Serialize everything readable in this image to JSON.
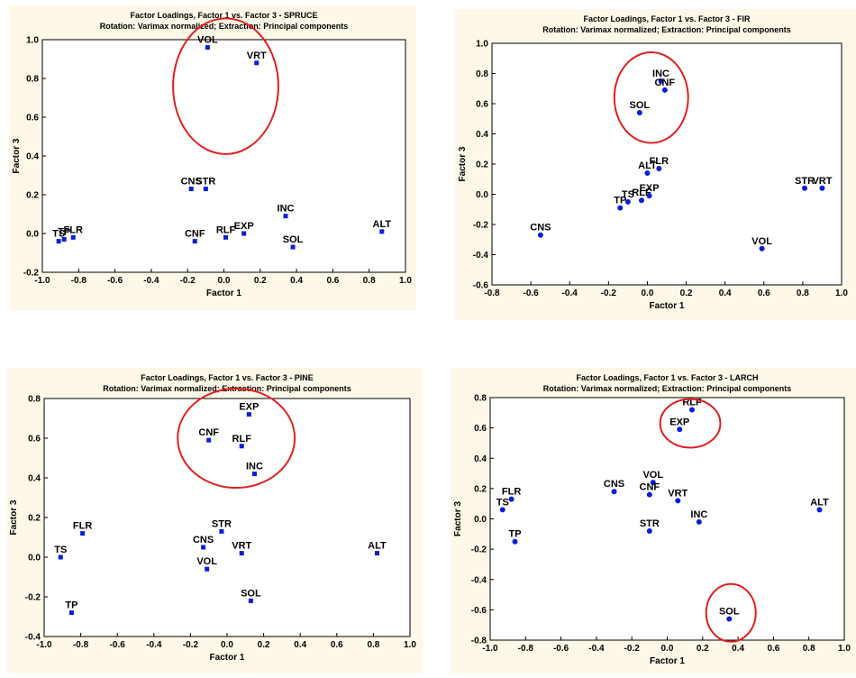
{
  "colors": {
    "panel_bg": "#fdf8e8",
    "marker": "#0a1ed8",
    "circle": "#e02020",
    "text": "#000000"
  },
  "chart_data": [
    {
      "type": "scatter",
      "title": "Factor Loadings, Factor 1 vs. Factor 3 - SPRUCE",
      "subtitle": "Rotation: Varimax normalized; Extraction: Principal components",
      "xlabel": "Factor 1",
      "ylabel": "Factor 3",
      "xlim": [
        -1.0,
        1.0
      ],
      "ylim": [
        -0.2,
        1.0
      ],
      "xticks": [
        "-1.0",
        "-0.8",
        "-0.6",
        "-0.4",
        "-0.2",
        "0.0",
        "0.2",
        "0.4",
        "0.6",
        "0.8",
        "1.0"
      ],
      "yticks": [
        "-0.2",
        "0.0",
        "0.2",
        "0.4",
        "0.6",
        "0.8",
        "1.0"
      ],
      "marker": "square",
      "grid": false,
      "points": [
        {
          "label": "VOL",
          "x": -0.09,
          "y": 0.96
        },
        {
          "label": "VRT",
          "x": 0.18,
          "y": 0.88
        },
        {
          "label": "CNS",
          "x": -0.18,
          "y": 0.23
        },
        {
          "label": "STR",
          "x": -0.1,
          "y": 0.23
        },
        {
          "label": "INC",
          "x": 0.34,
          "y": 0.09
        },
        {
          "label": "ALT",
          "x": 0.87,
          "y": 0.01
        },
        {
          "label": "EXP",
          "x": 0.11,
          "y": 0.0
        },
        {
          "label": "RLF",
          "x": 0.01,
          "y": -0.02
        },
        {
          "label": "CNF",
          "x": -0.16,
          "y": -0.04
        },
        {
          "label": "SOL",
          "x": 0.38,
          "y": -0.07
        },
        {
          "label": "FLR",
          "x": -0.83,
          "y": -0.02
        },
        {
          "label": "TS",
          "x": -0.91,
          "y": -0.04
        },
        {
          "label": "TP",
          "x": -0.88,
          "y": -0.03
        }
      ],
      "circles": [
        {
          "cx": 0.01,
          "cy": 0.76,
          "rx": 0.29,
          "ry": 0.35
        }
      ]
    },
    {
      "type": "scatter",
      "title": "Factor Loadings, Factor 1 vs. Factor 3 - FIR",
      "subtitle": "Rotation: Varimax normalized; Extraction: Principal components",
      "xlabel": "Factor 1",
      "ylabel": "Factor 3",
      "xlim": [
        -0.8,
        1.0
      ],
      "ylim": [
        -0.6,
        1.0
      ],
      "xticks": [
        "-0.8",
        "-0.6",
        "-0.4",
        "-0.2",
        "0.0",
        "0.2",
        "0.4",
        "0.6",
        "0.8",
        "1.0"
      ],
      "yticks": [
        "-0.6",
        "-0.4",
        "-0.2",
        "0.0",
        "0.2",
        "0.4",
        "0.6",
        "0.8",
        "1.0"
      ],
      "marker": "circle",
      "grid": false,
      "points": [
        {
          "label": "INC",
          "x": 0.07,
          "y": 0.75
        },
        {
          "label": "CNF",
          "x": 0.09,
          "y": 0.69
        },
        {
          "label": "SOL",
          "x": -0.04,
          "y": 0.54
        },
        {
          "label": "FLR",
          "x": 0.06,
          "y": 0.17
        },
        {
          "label": "ALT",
          "x": 0.0,
          "y": 0.14
        },
        {
          "label": "STR",
          "x": 0.81,
          "y": 0.04
        },
        {
          "label": "VRT",
          "x": 0.9,
          "y": 0.04
        },
        {
          "label": "EXP",
          "x": 0.01,
          "y": -0.01
        },
        {
          "label": "RLF",
          "x": -0.03,
          "y": -0.04
        },
        {
          "label": "TS",
          "x": -0.1,
          "y": -0.05
        },
        {
          "label": "TP",
          "x": -0.14,
          "y": -0.09
        },
        {
          "label": "CNS",
          "x": -0.55,
          "y": -0.27
        },
        {
          "label": "VOL",
          "x": 0.59,
          "y": -0.36
        }
      ],
      "circles": [
        {
          "cx": 0.02,
          "cy": 0.64,
          "rx": 0.19,
          "ry": 0.3
        }
      ]
    },
    {
      "type": "scatter",
      "title": "Factor Loadings, Factor 1 vs. Factor 3 - PINE",
      "subtitle": "Rotation: Varimax normalized; Extraction: Principal components",
      "xlabel": "Factor 1",
      "ylabel": "Factor 3",
      "xlim": [
        -1.0,
        1.0
      ],
      "ylim": [
        -0.4,
        0.8
      ],
      "xticks": [
        "-1.0",
        "-0.8",
        "-0.6",
        "-0.4",
        "-0.2",
        "0.0",
        "0.2",
        "0.4",
        "0.6",
        "0.8",
        "1.0"
      ],
      "yticks": [
        "-0.4",
        "-0.2",
        "0.0",
        "0.2",
        "0.4",
        "0.6",
        "0.8"
      ],
      "marker": "square",
      "grid": false,
      "points": [
        {
          "label": "EXP",
          "x": 0.12,
          "y": 0.72
        },
        {
          "label": "CNF",
          "x": -0.1,
          "y": 0.59
        },
        {
          "label": "RLF",
          "x": 0.08,
          "y": 0.56
        },
        {
          "label": "INC",
          "x": 0.15,
          "y": 0.42
        },
        {
          "label": "STR",
          "x": -0.03,
          "y": 0.13
        },
        {
          "label": "FLR",
          "x": -0.79,
          "y": 0.12
        },
        {
          "label": "CNS",
          "x": -0.13,
          "y": 0.05
        },
        {
          "label": "VRT",
          "x": 0.08,
          "y": 0.02
        },
        {
          "label": "ALT",
          "x": 0.82,
          "y": 0.02
        },
        {
          "label": "TS",
          "x": -0.91,
          "y": 0.0
        },
        {
          "label": "VOL",
          "x": -0.11,
          "y": -0.06
        },
        {
          "label": "SOL",
          "x": 0.13,
          "y": -0.22
        },
        {
          "label": "TP",
          "x": -0.85,
          "y": -0.28
        }
      ],
      "circles": [
        {
          "cx": 0.05,
          "cy": 0.6,
          "rx": 0.32,
          "ry": 0.25
        }
      ]
    },
    {
      "type": "scatter",
      "title": "Factor Loadings, Factor 1 vs. Factor 3 - LARCH",
      "subtitle": "Rotation: Varimax normalized; Extraction: Principal components",
      "xlabel": "Factor 1",
      "ylabel": "Factor 3",
      "xlim": [
        -1.0,
        1.0
      ],
      "ylim": [
        -0.8,
        0.8
      ],
      "xticks": [
        "-1.0",
        "-0.8",
        "-0.6",
        "-0.4",
        "-0.2",
        "0.0",
        "0.2",
        "0.4",
        "0.6",
        "0.8",
        "1.0"
      ],
      "yticks": [
        "-0.8",
        "-0.6",
        "-0.4",
        "-0.2",
        "0.0",
        "0.2",
        "0.4",
        "0.6",
        "0.8"
      ],
      "marker": "circle",
      "grid": false,
      "points": [
        {
          "label": "RLF",
          "x": 0.14,
          "y": 0.72
        },
        {
          "label": "EXP",
          "x": 0.07,
          "y": 0.59
        },
        {
          "label": "VOL",
          "x": -0.08,
          "y": 0.24
        },
        {
          "label": "CNS",
          "x": -0.3,
          "y": 0.18
        },
        {
          "label": "CNF",
          "x": -0.1,
          "y": 0.16
        },
        {
          "label": "VRT",
          "x": 0.06,
          "y": 0.12
        },
        {
          "label": "FLR",
          "x": -0.88,
          "y": 0.13
        },
        {
          "label": "TS",
          "x": -0.93,
          "y": 0.06
        },
        {
          "label": "ALT",
          "x": 0.86,
          "y": 0.06
        },
        {
          "label": "INC",
          "x": 0.18,
          "y": -0.02
        },
        {
          "label": "STR",
          "x": -0.1,
          "y": -0.08
        },
        {
          "label": "TP",
          "x": -0.86,
          "y": -0.15
        },
        {
          "label": "SOL",
          "x": 0.35,
          "y": -0.66
        }
      ],
      "circles": [
        {
          "cx": 0.13,
          "cy": 0.63,
          "rx": 0.17,
          "ry": 0.16
        },
        {
          "cx": 0.36,
          "cy": -0.62,
          "rx": 0.14,
          "ry": 0.19
        }
      ]
    }
  ]
}
